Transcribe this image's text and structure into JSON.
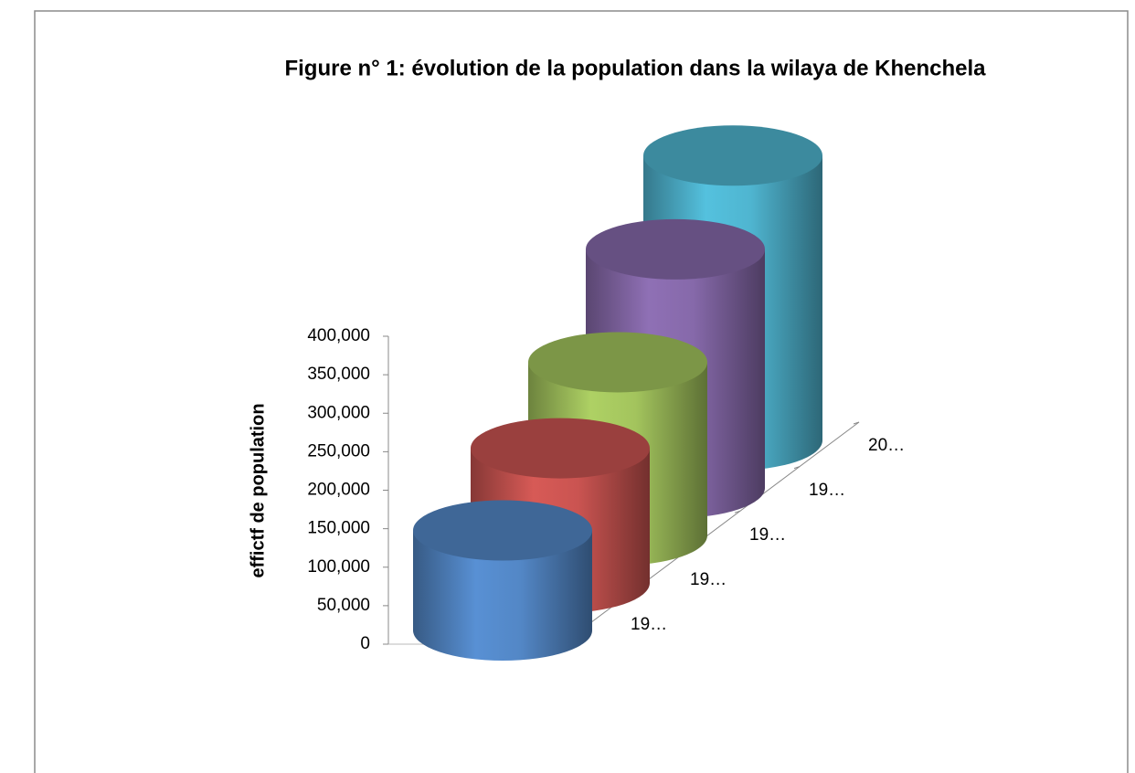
{
  "chart_data": {
    "type": "bar3d-cylinder",
    "title": "Figure n° 1: évolution de la population dans la wilaya de Khenchela",
    "y_label": "effictf de population",
    "categories": [
      "19…",
      "19…",
      "19…",
      "19…",
      "20…"
    ],
    "values": [
      130000,
      175000,
      225000,
      310000,
      370000
    ],
    "colors": [
      "#4f81bd",
      "#c0504d",
      "#9bbb59",
      "#8064a2",
      "#4bacc6"
    ],
    "ylim": [
      0,
      400000
    ],
    "yticks": [
      0,
      {
        "value": 50000,
        "label": "50,000"
      },
      {
        "value": 100000,
        "label": "100,000"
      },
      {
        "value": 150000,
        "label": "150,000"
      },
      {
        "value": 200000,
        "label": "200,000"
      },
      {
        "value": 250000,
        "label": "250,000"
      },
      {
        "value": 300000,
        "label": "300,000"
      },
      {
        "value": 350000,
        "label": "350,000"
      },
      {
        "value": 400000,
        "label": "400,000"
      }
    ],
    "grid": false
  }
}
